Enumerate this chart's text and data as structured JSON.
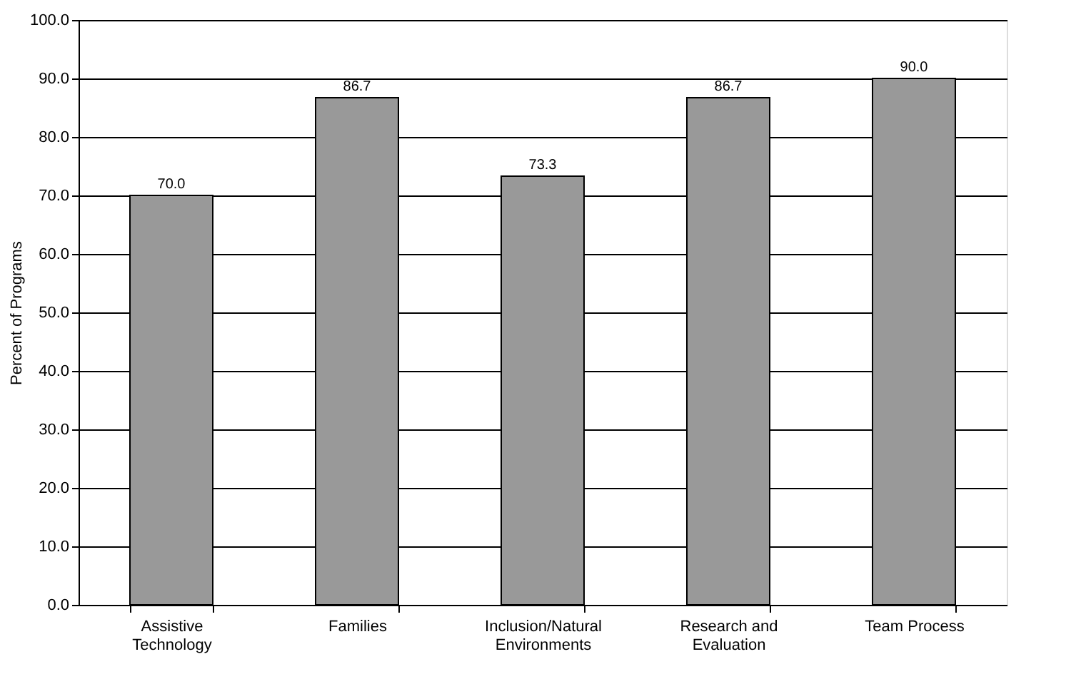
{
  "chart_data": {
    "type": "bar",
    "ylabel": "Percent of Programs",
    "categories": [
      "Assistive\nTechnology",
      "Families",
      "Inclusion/Natural\nEnvironments",
      "Research and\nEvaluation",
      "Team Process"
    ],
    "values": [
      70.0,
      86.7,
      73.3,
      86.7,
      90.0
    ],
    "value_labels": [
      "70.0",
      "86.7",
      "73.3",
      "86.7",
      "90.0"
    ],
    "color": "#999999",
    "ylim": [
      0,
      100
    ],
    "yticks": [
      {
        "value": 0,
        "label": "0.0"
      },
      {
        "value": 10,
        "label": "10.0"
      },
      {
        "value": 20,
        "label": "20.0"
      },
      {
        "value": 30,
        "label": "30.0"
      },
      {
        "value": 40,
        "label": "40.0"
      },
      {
        "value": 50,
        "label": "50.0"
      },
      {
        "value": 60,
        "label": "60.0"
      },
      {
        "value": 70,
        "label": "70.0"
      },
      {
        "value": 80,
        "label": "80.0"
      },
      {
        "value": 90,
        "label": "90.0"
      },
      {
        "value": 100,
        "label": "100.0"
      }
    ],
    "grid": "y"
  }
}
